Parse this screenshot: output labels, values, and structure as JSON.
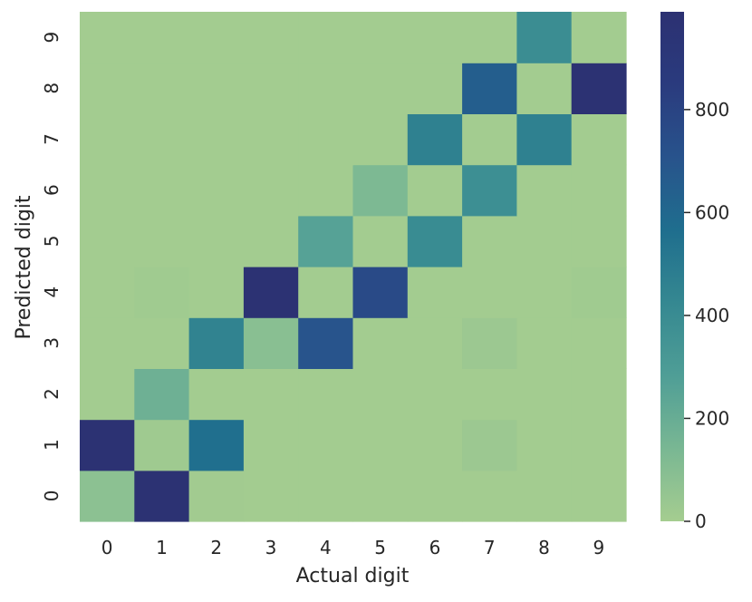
{
  "chart_data": {
    "type": "heatmap",
    "xlabel": "Actual digit",
    "ylabel": "Predicted digit",
    "x_categories": [
      "0",
      "1",
      "2",
      "3",
      "4",
      "5",
      "6",
      "7",
      "8",
      "9"
    ],
    "y_categories": [
      "0",
      "1",
      "2",
      "3",
      "4",
      "5",
      "6",
      "7",
      "8",
      "9"
    ],
    "y_order": "bottom-to-top",
    "values": [
      [
        80,
        980,
        10,
        5,
        5,
        5,
        5,
        5,
        5,
        5
      ],
      [
        980,
        20,
        560,
        5,
        5,
        5,
        5,
        30,
        5,
        5
      ],
      [
        5,
        180,
        5,
        5,
        5,
        5,
        5,
        5,
        5,
        5
      ],
      [
        5,
        5,
        450,
        90,
        700,
        5,
        5,
        30,
        5,
        5
      ],
      [
        5,
        15,
        5,
        980,
        5,
        760,
        5,
        5,
        5,
        15
      ],
      [
        5,
        5,
        5,
        5,
        260,
        5,
        400,
        5,
        5,
        5
      ],
      [
        5,
        5,
        5,
        5,
        5,
        130,
        5,
        380,
        5,
        5
      ],
      [
        5,
        5,
        5,
        5,
        5,
        5,
        460,
        5,
        460,
        5
      ],
      [
        5,
        5,
        5,
        5,
        5,
        5,
        5,
        650,
        5,
        980
      ],
      [
        5,
        5,
        5,
        5,
        5,
        5,
        5,
        5,
        390,
        5
      ]
    ],
    "colorbar": {
      "min": 0,
      "max": 990,
      "ticks": [
        0,
        200,
        400,
        600,
        800
      ],
      "tick_labels": [
        "0",
        "200",
        "400",
        "600",
        "800"
      ],
      "colormap": "crest",
      "stops": [
        "#a5cd90",
        "#79b793",
        "#4f9e96",
        "#358891",
        "#1f6e8e",
        "#28538c",
        "#2a3b7e",
        "#2c3172"
      ]
    },
    "grid": false
  }
}
